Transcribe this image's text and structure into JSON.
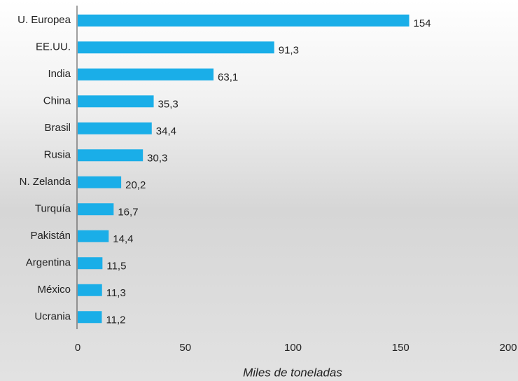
{
  "chart_data": {
    "type": "bar",
    "orientation": "horizontal",
    "x_label": "Miles de toneladas",
    "categories": [
      "U. Europea",
      "EE.UU.",
      "India",
      "China",
      "Brasil",
      "Rusia",
      "N. Zelanda",
      "Turquía",
      "Pakistán",
      "Argentina",
      "México",
      "Ucrania"
    ],
    "values": [
      154,
      91.3,
      63.1,
      35.3,
      34.4,
      30.3,
      20.2,
      16.7,
      14.4,
      11.5,
      11.3,
      11.2
    ],
    "value_labels": [
      "154",
      "91,3",
      "63,1",
      "35,3",
      "34,4",
      "30,3",
      "20,2",
      "16,7",
      "14,4",
      "11,5",
      "11,3",
      "11,2"
    ],
    "color": "#1aaee8",
    "xlim": [
      0,
      200
    ],
    "xticks": [
      0,
      50,
      100,
      150,
      200
    ],
    "grid": false
  }
}
